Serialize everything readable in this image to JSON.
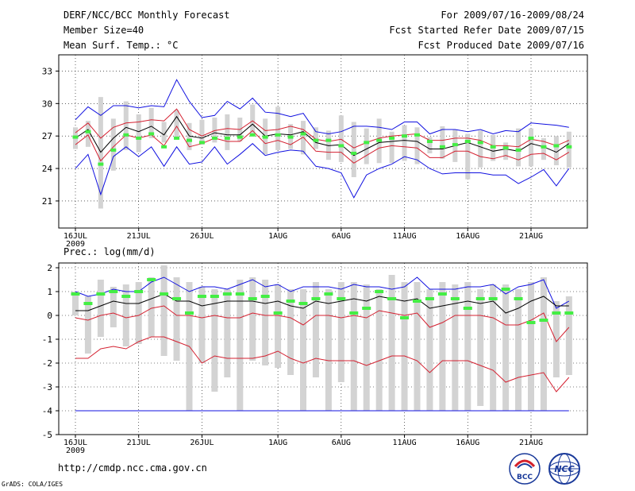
{
  "header": {
    "title": "DERF/NCC/BCC Monthly Forecast",
    "member_size": "Member Size=40",
    "variable": "Mean Surf. Temp.: °C",
    "period": "For 2009/07/16-2009/08/24",
    "started": "Fcst Started Refer Date 2009/07/15",
    "produced": "Fcst Produced Date 2009/07/16"
  },
  "footer": {
    "url": "http://cmdp.ncc.cma.gov.cn",
    "grads": "GrADS: COLA/IGES",
    "logo_left_text": "BCC",
    "logo_right_text": "NCC"
  },
  "colors": {
    "box": "#d3d3d3",
    "mean": "#44ee44",
    "blue": "#1010e0",
    "red": "#d42030",
    "black": "#000000"
  },
  "chart_data": [
    {
      "type": "line",
      "title": "Mean Surf. Temp.: °C",
      "ylim": [
        18.5,
        34.5
      ],
      "yticks": [
        21,
        24,
        27,
        30,
        33
      ],
      "x_ticks": [
        {
          "day": 0,
          "label": "16JUL"
        },
        {
          "day": 5,
          "label": "21JUL"
        },
        {
          "day": 10,
          "label": "26JUL"
        },
        {
          "day": 16,
          "label": "1AUG"
        },
        {
          "day": 21,
          "label": "6AUG"
        },
        {
          "day": 26,
          "label": "11AUG"
        },
        {
          "day": 31,
          "label": "16AUG"
        },
        {
          "day": 36,
          "label": "21AUG"
        }
      ],
      "year_label": "2009",
      "day_count": 40,
      "series": [
        {
          "name": "max",
          "color": "blue",
          "values": [
            28.5,
            29.7,
            28.9,
            29.8,
            29.8,
            29.6,
            29.8,
            29.7,
            32.2,
            30.2,
            28.7,
            28.9,
            30.2,
            29.5,
            30.5,
            29.2,
            29.1,
            28.8,
            29.1,
            27.4,
            27.2,
            27.4,
            27.9,
            27.9,
            27.8,
            27.6,
            28.3,
            28.3,
            27.2,
            27.6,
            27.6,
            27.4,
            27.6,
            27.2,
            27.5,
            27.4,
            28.2,
            28.1,
            28.0,
            27.8
          ]
        },
        {
          "name": "upper",
          "color": "red",
          "values": [
            27.3,
            28.2,
            26.8,
            27.8,
            28.2,
            28.3,
            28.5,
            28.4,
            29.5,
            27.6,
            27.0,
            27.5,
            27.7,
            27.6,
            28.4,
            27.5,
            27.6,
            27.9,
            27.6,
            26.7,
            26.5,
            26.7,
            25.9,
            26.4,
            26.8,
            27.0,
            27.1,
            27.2,
            26.6,
            26.6,
            26.8,
            26.8,
            26.6,
            26.1,
            26.1,
            26.0,
            26.7,
            26.5,
            26.1,
            26.6
          ]
        },
        {
          "name": "median",
          "color": "black",
          "values": [
            26.8,
            27.6,
            25.5,
            26.8,
            27.8,
            27.4,
            27.9,
            27.1,
            28.8,
            27.0,
            26.8,
            27.3,
            27.1,
            27.1,
            28.1,
            27.0,
            27.2,
            27.1,
            27.4,
            26.4,
            26.1,
            26.2,
            25.2,
            25.8,
            26.4,
            26.5,
            26.6,
            26.5,
            25.8,
            25.8,
            26.1,
            26.4,
            26.0,
            25.6,
            25.8,
            25.6,
            26.3,
            26.0,
            25.5,
            26.3
          ]
        },
        {
          "name": "lower",
          "color": "red",
          "values": [
            26.2,
            27.1,
            24.7,
            26.0,
            27.1,
            26.8,
            27.1,
            26.1,
            27.9,
            26.0,
            26.3,
            26.8,
            26.5,
            26.5,
            27.5,
            26.3,
            26.6,
            26.2,
            26.9,
            25.6,
            25.5,
            25.5,
            24.5,
            25.2,
            25.9,
            26.1,
            26.0,
            25.9,
            25.0,
            25.0,
            25.6,
            25.6,
            25.1,
            24.9,
            25.2,
            24.8,
            25.3,
            25.4,
            24.8,
            25.5
          ]
        },
        {
          "name": "min",
          "color": "blue",
          "values": [
            24.0,
            25.3,
            21.6,
            25.1,
            26.0,
            25.1,
            26.0,
            24.2,
            26.0,
            24.4,
            24.6,
            26.0,
            24.4,
            25.3,
            26.3,
            25.2,
            25.5,
            25.7,
            25.6,
            24.2,
            24.0,
            23.6,
            21.3,
            23.4,
            24.0,
            24.4,
            25.1,
            24.8,
            24.0,
            23.5,
            23.6,
            23.6,
            23.6,
            23.4,
            23.4,
            22.6,
            23.2,
            23.9,
            22.4,
            24.0
          ]
        }
      ],
      "box_ranges": [
        [
          25.8,
          27.8
        ],
        [
          26.0,
          28.4
        ],
        [
          20.3,
          30.6
        ],
        [
          23.8,
          28.6
        ],
        [
          25.7,
          30.2
        ],
        [
          25.5,
          29.0
        ],
        [
          26.8,
          29.6
        ],
        [
          26.4,
          28.3
        ],
        [
          26.7,
          29.4
        ],
        [
          25.7,
          28.2
        ],
        [
          26.2,
          28.5
        ],
        [
          26.4,
          28.7
        ],
        [
          25.7,
          29.0
        ],
        [
          26.5,
          28.7
        ],
        [
          27.0,
          29.9
        ],
        [
          25.3,
          28.6
        ],
        [
          25.7,
          29.7
        ],
        [
          25.8,
          28.1
        ],
        [
          25.3,
          28.4
        ],
        [
          25.8,
          27.8
        ],
        [
          24.8,
          27.5
        ],
        [
          24.6,
          28.9
        ],
        [
          23.2,
          28.3
        ],
        [
          24.4,
          27.7
        ],
        [
          24.5,
          28.6
        ],
        [
          24.5,
          27.4
        ],
        [
          24.7,
          28.0
        ],
        [
          24.4,
          27.8
        ],
        [
          25.4,
          26.9
        ],
        [
          24.9,
          27.9
        ],
        [
          24.6,
          27.6
        ],
        [
          23.0,
          27.2
        ],
        [
          24.1,
          27.5
        ],
        [
          24.7,
          27.1
        ],
        [
          24.8,
          26.4
        ],
        [
          24.2,
          27.7
        ],
        [
          24.2,
          27.7
        ],
        [
          24.8,
          26.8
        ],
        [
          24.3,
          27.0
        ],
        [
          24.1,
          27.4
        ]
      ],
      "ensemble_means": [
        26.9,
        27.4,
        24.4,
        25.7,
        27.1,
        26.8,
        27.2,
        26.0,
        26.8,
        26.6,
        26.4,
        26.8,
        26.8,
        26.9,
        27.1,
        26.9,
        27.1,
        26.9,
        27.2,
        26.6,
        26.6,
        26.1,
        25.4,
        26.4,
        26.6,
        26.8,
        27.0,
        27.1,
        26.5,
        26.0,
        26.2,
        26.5,
        26.4,
        26.0,
        25.9,
        25.7,
        26.8,
        26.0,
        26.1,
        26.0
      ]
    },
    {
      "type": "line",
      "title": "Prec.: log(mm/d)",
      "ylim": [
        -5,
        2.2
      ],
      "yticks": [
        -5,
        -4,
        -3,
        -2,
        -1,
        0,
        1,
        2
      ],
      "x_ticks": [
        {
          "day": 0,
          "label": "16JUL"
        },
        {
          "day": 5,
          "label": "21JUL"
        },
        {
          "day": 10,
          "label": "26JUL"
        },
        {
          "day": 16,
          "label": "1AUG"
        },
        {
          "day": 21,
          "label": "6AUG"
        },
        {
          "day": 26,
          "label": "11AUG"
        },
        {
          "day": 31,
          "label": "16AUG"
        },
        {
          "day": 36,
          "label": "21AUG"
        }
      ],
      "year_label": "2009",
      "day_count": 40,
      "series": [
        {
          "name": "max",
          "color": "blue",
          "values": [
            1.0,
            0.8,
            0.9,
            1.1,
            1.0,
            1.0,
            1.4,
            1.6,
            1.3,
            1.0,
            1.2,
            1.2,
            1.1,
            1.3,
            1.5,
            1.2,
            1.3,
            1.0,
            1.2,
            1.2,
            1.2,
            1.1,
            1.3,
            1.2,
            1.2,
            1.1,
            1.2,
            1.6,
            1.1,
            1.1,
            1.1,
            1.2,
            1.2,
            1.3,
            0.9,
            1.2,
            1.3,
            1.5,
            0.3,
            0.6
          ]
        },
        {
          "name": "median",
          "color": "black",
          "values": [
            0.2,
            0.2,
            0.4,
            0.6,
            0.5,
            0.5,
            0.7,
            0.9,
            0.6,
            0.6,
            0.4,
            0.5,
            0.6,
            0.6,
            0.6,
            0.5,
            0.6,
            0.4,
            0.3,
            0.6,
            0.5,
            0.6,
            0.7,
            0.6,
            0.8,
            0.7,
            0.6,
            0.7,
            0.3,
            0.4,
            0.5,
            0.6,
            0.5,
            0.6,
            0.1,
            0.3,
            0.6,
            0.8,
            0.4,
            0.4
          ]
        },
        {
          "name": "upper_red",
          "color": "red",
          "values": [
            -0.1,
            -0.2,
            0.0,
            0.1,
            -0.1,
            0.0,
            0.3,
            0.4,
            0.0,
            0.0,
            -0.1,
            0.0,
            -0.1,
            -0.1,
            0.1,
            0.0,
            0.0,
            -0.1,
            -0.4,
            0.0,
            0.0,
            -0.1,
            0.0,
            -0.1,
            0.2,
            0.1,
            0.0,
            0.1,
            -0.5,
            -0.3,
            0.0,
            0.0,
            0.0,
            -0.1,
            -0.4,
            -0.4,
            -0.2,
            0.1,
            -1.1,
            -0.5
          ]
        },
        {
          "name": "lower_red",
          "color": "red",
          "values": [
            -1.8,
            -1.8,
            -1.4,
            -1.3,
            -1.4,
            -1.1,
            -0.9,
            -0.9,
            -1.1,
            -1.3,
            -2.0,
            -1.7,
            -1.8,
            -1.8,
            -1.8,
            -1.7,
            -1.5,
            -1.8,
            -2.0,
            -1.8,
            -1.9,
            -1.9,
            -1.9,
            -2.1,
            -1.9,
            -1.7,
            -1.7,
            -1.9,
            -2.4,
            -1.9,
            -1.9,
            -1.9,
            -2.1,
            -2.3,
            -2.8,
            -2.6,
            -2.5,
            -2.4,
            -3.2,
            -2.6
          ]
        },
        {
          "name": "min",
          "color": "blue",
          "values": [
            -4,
            -4,
            -4,
            -4,
            -4,
            -4,
            -4,
            -4,
            -4,
            -4,
            -4,
            -4,
            -4,
            -4,
            -4,
            -4,
            -4,
            -4,
            -4,
            -4,
            -4,
            -4,
            -4,
            -4,
            -4,
            -4,
            -4,
            -4,
            -4,
            -4,
            -4,
            -4,
            -4,
            -4,
            -4,
            -4,
            -4,
            -4,
            -4,
            -4
          ]
        }
      ],
      "box_ranges": [
        [
          0.0,
          1.0
        ],
        [
          -1.6,
          0.8
        ],
        [
          -0.9,
          1.5
        ],
        [
          -0.5,
          1.2
        ],
        [
          -1.3,
          1.3
        ],
        [
          -1.2,
          1.4
        ],
        [
          -0.9,
          1.6
        ],
        [
          -1.7,
          2.1
        ],
        [
          -1.9,
          1.6
        ],
        [
          -4.0,
          1.4
        ],
        [
          -2.0,
          1.2
        ],
        [
          -3.2,
          1.1
        ],
        [
          -2.6,
          1.1
        ],
        [
          -4.0,
          1.5
        ],
        [
          -1.9,
          1.6
        ],
        [
          -2.1,
          1.5
        ],
        [
          -2.2,
          1.3
        ],
        [
          -2.5,
          1.1
        ],
        [
          -4.0,
          1.1
        ],
        [
          -2.6,
          1.4
        ],
        [
          -4.0,
          1.1
        ],
        [
          -2.8,
          1.4
        ],
        [
          -4.0,
          1.4
        ],
        [
          -4.0,
          1.3
        ],
        [
          -4.0,
          1.1
        ],
        [
          -4.0,
          1.7
        ],
        [
          -4.0,
          1.4
        ],
        [
          -4.0,
          1.4
        ],
        [
          -4.0,
          1.1
        ],
        [
          -4.0,
          1.4
        ],
        [
          -4.0,
          1.3
        ],
        [
          -4.0,
          1.4
        ],
        [
          -3.8,
          1.1
        ],
        [
          -4.0,
          1.3
        ],
        [
          -4.0,
          1.3
        ],
        [
          -4.0,
          1.1
        ],
        [
          -4.0,
          1.4
        ],
        [
          -4.0,
          1.6
        ],
        [
          -2.6,
          0.6
        ],
        [
          -2.5,
          0.8
        ]
      ],
      "ensemble_means": [
        0.9,
        0.5,
        0.9,
        1.0,
        0.8,
        1.0,
        1.5,
        0.9,
        0.7,
        0.1,
        0.8,
        0.8,
        0.9,
        0.9,
        0.7,
        0.8,
        0.1,
        0.6,
        0.5,
        0.7,
        0.9,
        0.7,
        0.1,
        0.3,
        1.0,
        0.7,
        -0.1,
        0.6,
        0.7,
        0.9,
        0.7,
        0.3,
        0.7,
        0.7,
        1.1,
        0.7,
        -0.3,
        -0.2,
        0.1,
        0.1
      ]
    }
  ]
}
